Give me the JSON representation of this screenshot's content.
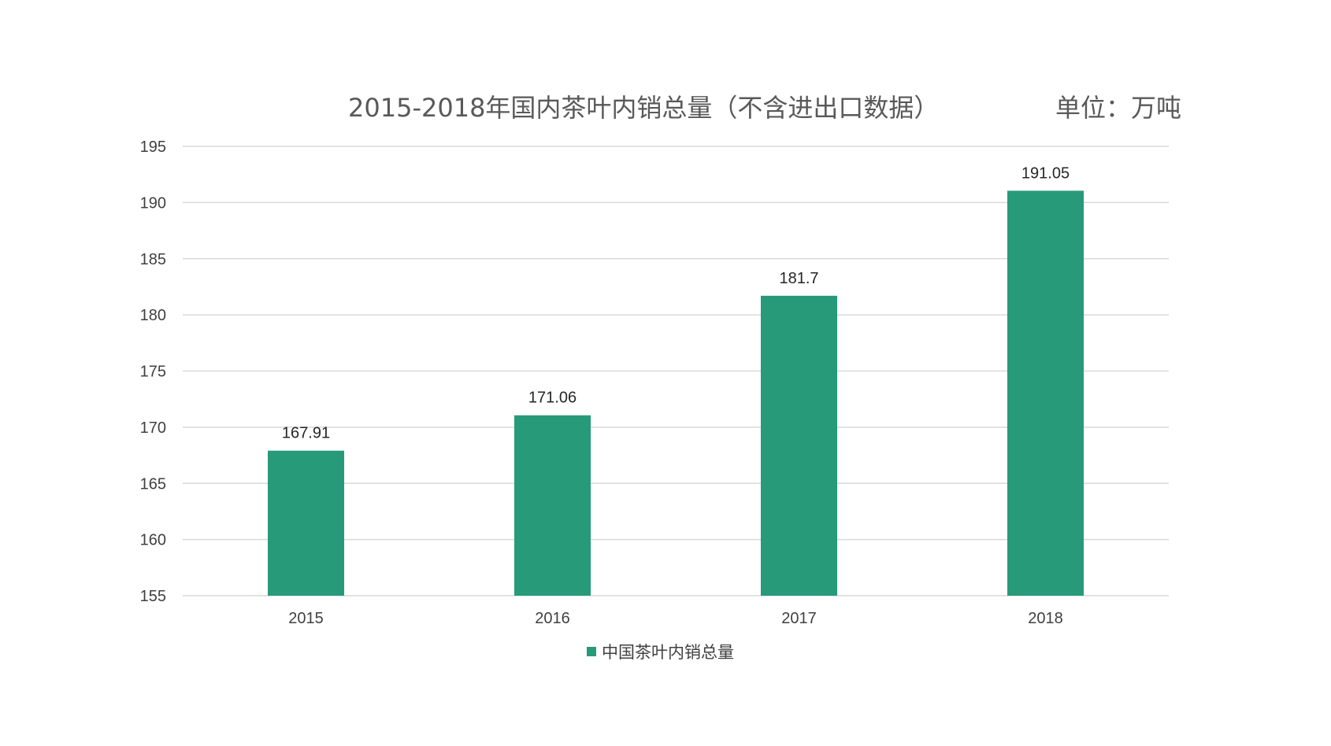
{
  "chart_data": {
    "type": "bar",
    "title": "2015-2018年国内茶叶内销总量（不含进出口数据）",
    "unit_note": "单位：万吨",
    "categories": [
      "2015",
      "2016",
      "2017",
      "2018"
    ],
    "series": [
      {
        "name": "中国茶叶内销总量",
        "values": [
          167.91,
          171.06,
          181.7,
          191.05
        ],
        "color": "#279a79"
      }
    ],
    "data_labels": [
      "167.91",
      "171.06",
      "181.7",
      "191.05"
    ],
    "ylim": [
      155,
      195
    ],
    "y_ticks": [
      155,
      160,
      165,
      170,
      175,
      180,
      185,
      190,
      195
    ],
    "grid": true,
    "legend_position": "bottom"
  }
}
